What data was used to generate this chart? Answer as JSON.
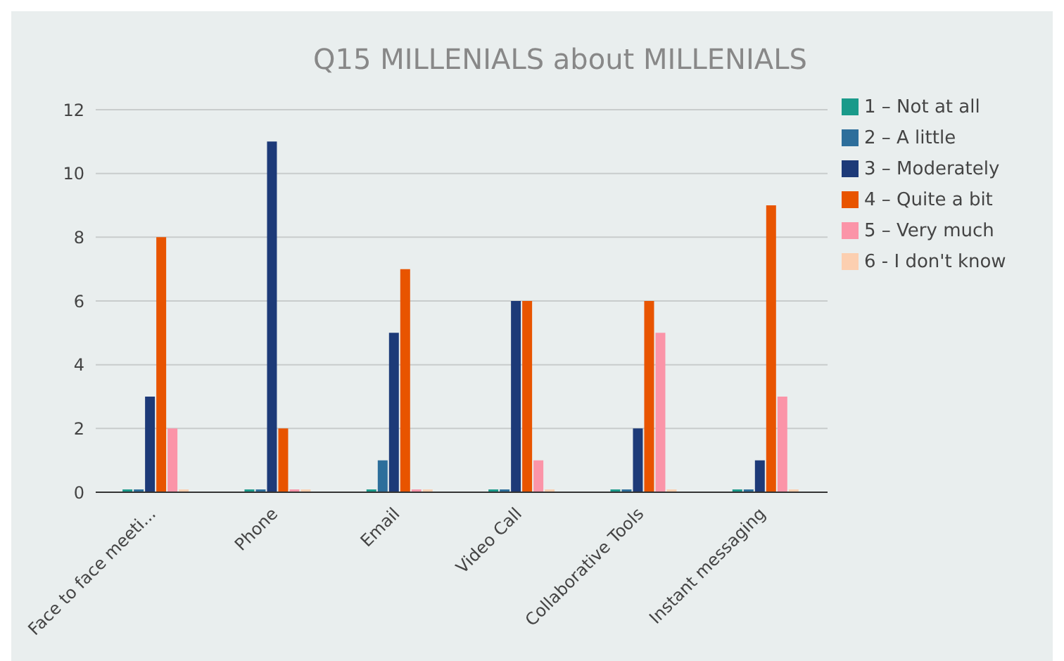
{
  "chart_data": {
    "type": "bar",
    "title": "Q15 MILLENIALS about MILLENIALS",
    "categories": [
      "Face to face meeti...",
      "Phone",
      "Email",
      "Video Call",
      "Collaborative Tools",
      "Instant messaging"
    ],
    "series": [
      {
        "name": "1 – Not at all",
        "color": "#1a9a8a",
        "values": [
          0,
          0,
          0,
          0,
          0,
          0
        ]
      },
      {
        "name": "2 – A little",
        "color": "#2d6e9b",
        "values": [
          0,
          0,
          1,
          0,
          0,
          0
        ]
      },
      {
        "name": "3 – Moderately",
        "color": "#1d3a78",
        "values": [
          3,
          11,
          5,
          6,
          2,
          1
        ]
      },
      {
        "name": "4 – Quite a bit",
        "color": "#e85400",
        "values": [
          8,
          2,
          7,
          6,
          6,
          9
        ]
      },
      {
        "name": "5 – Very much",
        "color": "#fb94a8",
        "values": [
          2,
          0,
          0,
          1,
          5,
          3
        ]
      },
      {
        "name": "6 - I don't know",
        "color": "#fccfb0",
        "values": [
          0,
          0,
          0,
          0,
          0,
          0
        ]
      }
    ],
    "ylim": [
      0,
      12
    ],
    "yticks": [
      0,
      2,
      4,
      6,
      8,
      10,
      12
    ],
    "grid": "y",
    "legend": "top right"
  }
}
